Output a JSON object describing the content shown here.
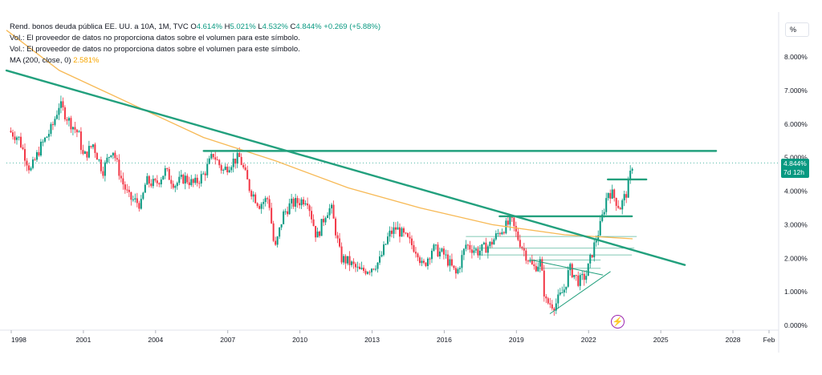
{
  "legend": {
    "symbol_name": "Rend. bonos deuda pública EE. UU. a 10A, 1M, TVC",
    "open_label": "O",
    "open_value": "4.614%",
    "high_label": "H",
    "high_value": "5.021%",
    "low_label": "L",
    "low_value": "4.532%",
    "close_label": "C",
    "close_value": "4.844%",
    "change": "+0.269 (+5.88%)",
    "volume_note_1": "Vol.: El proveedor de datos no proporciona datos sobre el volumen para este símbolo.",
    "volume_note_2": "Vol.: El proveedor de datos no proporciona datos sobre el volumen para este símbolo.",
    "ma_label": "MA (200, close, 0)",
    "ma_value": "2.581%"
  },
  "scale_button": "%",
  "price_tag": {
    "value": "4.844%",
    "countdown": "7d 12h"
  },
  "event_icon": "lightning-icon",
  "colors": {
    "up": "#089981",
    "down": "#f23645",
    "trendline": "#22a07d",
    "ma": "#f7b955",
    "event": "#9c27b0"
  },
  "chart_data": {
    "type": "candlestick",
    "title": "Rend. bonos deuda pública EE. UU. a 10A, 1M, TVC",
    "ylim": [
      0,
      9
    ],
    "y_ticks": [
      "0.000%",
      "1.000%",
      "2.000%",
      "3.000%",
      "4.000%",
      "5.000%",
      "6.000%",
      "7.000%",
      "8.000%"
    ],
    "x_ticks": [
      "1998",
      "2001",
      "2004",
      "2007",
      "2010",
      "2013",
      "2016",
      "2019",
      "2022",
      "2025",
      "2028",
      "Feb"
    ],
    "xlim": [
      1997.8,
      2029.9
    ],
    "series_close": [
      {
        "x": 1997.9,
        "y": 5.8
      },
      {
        "x": 1998.3,
        "y": 5.6
      },
      {
        "x": 1998.8,
        "y": 4.6
      },
      {
        "x": 1999.2,
        "y": 5.3
      },
      {
        "x": 1999.7,
        "y": 5.9
      },
      {
        "x": 2000.0,
        "y": 6.6
      },
      {
        "x": 2000.4,
        "y": 6.1
      },
      {
        "x": 2000.8,
        "y": 5.7
      },
      {
        "x": 2001.0,
        "y": 5.0
      },
      {
        "x": 2001.4,
        "y": 5.4
      },
      {
        "x": 2001.8,
        "y": 4.6
      },
      {
        "x": 2002.2,
        "y": 5.3
      },
      {
        "x": 2002.6,
        "y": 4.3
      },
      {
        "x": 2002.9,
        "y": 3.8
      },
      {
        "x": 2003.4,
        "y": 3.6
      },
      {
        "x": 2003.6,
        "y": 4.3
      },
      {
        "x": 2004.0,
        "y": 4.2
      },
      {
        "x": 2004.4,
        "y": 4.6
      },
      {
        "x": 2004.8,
        "y": 4.2
      },
      {
        "x": 2005.2,
        "y": 4.4
      },
      {
        "x": 2005.6,
        "y": 4.2
      },
      {
        "x": 2006.0,
        "y": 4.5
      },
      {
        "x": 2006.4,
        "y": 5.1
      },
      {
        "x": 2006.8,
        "y": 4.6
      },
      {
        "x": 2007.2,
        "y": 4.9
      },
      {
        "x": 2007.5,
        "y": 5.0
      },
      {
        "x": 2007.9,
        "y": 4.1
      },
      {
        "x": 2008.3,
        "y": 3.6
      },
      {
        "x": 2008.7,
        "y": 3.8
      },
      {
        "x": 2008.95,
        "y": 2.2
      },
      {
        "x": 2009.3,
        "y": 3.3
      },
      {
        "x": 2009.6,
        "y": 3.6
      },
      {
        "x": 2010.0,
        "y": 3.7
      },
      {
        "x": 2010.3,
        "y": 3.8
      },
      {
        "x": 2010.7,
        "y": 2.6
      },
      {
        "x": 2011.1,
        "y": 3.4
      },
      {
        "x": 2011.3,
        "y": 3.5
      },
      {
        "x": 2011.7,
        "y": 2.0
      },
      {
        "x": 2012.0,
        "y": 1.9
      },
      {
        "x": 2012.5,
        "y": 1.6
      },
      {
        "x": 2012.9,
        "y": 1.7
      },
      {
        "x": 2013.3,
        "y": 1.9
      },
      {
        "x": 2013.7,
        "y": 2.7
      },
      {
        "x": 2014.0,
        "y": 2.9
      },
      {
        "x": 2014.4,
        "y": 2.6
      },
      {
        "x": 2014.9,
        "y": 2.2
      },
      {
        "x": 2015.1,
        "y": 1.7
      },
      {
        "x": 2015.5,
        "y": 2.3
      },
      {
        "x": 2016.0,
        "y": 2.1
      },
      {
        "x": 2016.5,
        "y": 1.5
      },
      {
        "x": 2016.9,
        "y": 2.4
      },
      {
        "x": 2017.4,
        "y": 2.2
      },
      {
        "x": 2017.9,
        "y": 2.4
      },
      {
        "x": 2018.3,
        "y": 2.8
      },
      {
        "x": 2018.8,
        "y": 3.1
      },
      {
        "x": 2019.0,
        "y": 2.7
      },
      {
        "x": 2019.4,
        "y": 2.1
      },
      {
        "x": 2019.7,
        "y": 1.7
      },
      {
        "x": 2020.0,
        "y": 1.9
      },
      {
        "x": 2020.2,
        "y": 0.7
      },
      {
        "x": 2020.6,
        "y": 0.6
      },
      {
        "x": 2021.0,
        "y": 1.1
      },
      {
        "x": 2021.2,
        "y": 1.7
      },
      {
        "x": 2021.6,
        "y": 1.3
      },
      {
        "x": 2021.9,
        "y": 1.5
      },
      {
        "x": 2022.2,
        "y": 2.3
      },
      {
        "x": 2022.5,
        "y": 3.0
      },
      {
        "x": 2022.8,
        "y": 4.0
      },
      {
        "x": 2023.0,
        "y": 3.9
      },
      {
        "x": 2023.3,
        "y": 3.5
      },
      {
        "x": 2023.6,
        "y": 4.0
      },
      {
        "x": 2023.83,
        "y": 4.84
      }
    ],
    "moving_average": {
      "name": "MA (200, close, 0)",
      "last_value": 2.581,
      "points": [
        {
          "x": 1997.8,
          "y": 8.8
        },
        {
          "x": 2000.0,
          "y": 7.6
        },
        {
          "x": 2003.0,
          "y": 6.6
        },
        {
          "x": 2006.0,
          "y": 5.6
        },
        {
          "x": 2009.0,
          "y": 4.9
        },
        {
          "x": 2012.0,
          "y": 4.1
        },
        {
          "x": 2015.0,
          "y": 3.5
        },
        {
          "x": 2018.0,
          "y": 3.0
        },
        {
          "x": 2021.0,
          "y": 2.7
        },
        {
          "x": 2023.83,
          "y": 2.581
        }
      ]
    },
    "trendlines": [
      {
        "name": "long-term-downtrend",
        "x1": 1997.8,
        "y1": 7.6,
        "x2": 2026.0,
        "y2": 1.8
      },
      {
        "name": "resistance-5.2",
        "x1": 2006.0,
        "y1": 5.2,
        "x2": 2027.3,
        "y2": 5.2
      },
      {
        "name": "level-4.35",
        "x1": 2022.8,
        "y1": 4.35,
        "x2": 2024.4,
        "y2": 4.35
      },
      {
        "name": "level-3.25",
        "x1": 2018.3,
        "y1": 3.25,
        "x2": 2023.8,
        "y2": 3.25
      },
      {
        "name": "support-wedge",
        "x1": 2020.4,
        "y1": 0.35,
        "x2": 2022.9,
        "y2": 1.6
      }
    ],
    "thin_levels": [
      {
        "x1": 2016.9,
        "x2": 2024.0,
        "y": 2.65
      },
      {
        "x1": 2017.2,
        "x2": 2023.9,
        "y": 2.3
      },
      {
        "x1": 2017.4,
        "x2": 2023.8,
        "y": 2.1
      },
      {
        "x1": 2019.5,
        "x2": 2022.5,
        "y": 1.95
      },
      {
        "x1": 2019.8,
        "x2": 2022.5,
        "y": 1.7
      }
    ]
  }
}
